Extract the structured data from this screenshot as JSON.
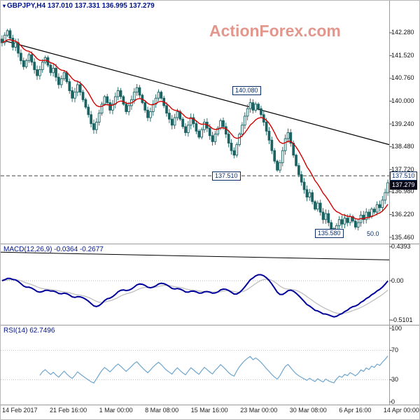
{
  "header": {
    "icon": "▾",
    "symbol_line": "GBPJPY,H4 137.010 137.331 136.995 137.279"
  },
  "watermark": {
    "text": "ActionForex.com",
    "color": "#dd867a"
  },
  "colors": {
    "candle": "#1a6363",
    "ma": "#d40000",
    "trendline": "#000000",
    "macd": "#00009b",
    "signal": "#bfbfbf",
    "rsi": "#6ea6cd",
    "panel_border": "#9a9a9a",
    "label_box": "#0b2e6b",
    "current_box_bg": "#07071a"
  },
  "time_axis": [
    "14 Feb 2017",
    "21 Feb 16:00",
    "1 Mar 00:00",
    "8 Mar 08:00",
    "15 Mar 16:00",
    "23 Mar 00:00",
    "30 Mar 08:00",
    "6 Apr 16:00",
    "14 Apr 00:00"
  ],
  "chart_data": [
    {
      "type": "candlestick",
      "title": "GBPJPY,H4",
      "ohlc_current": {
        "open": 137.01,
        "high": 137.331,
        "low": 136.995,
        "close": 137.279
      },
      "ylim": [
        135.25,
        143.35
      ],
      "y_ticks": [
        142.28,
        141.52,
        140.76,
        140.0,
        139.24,
        138.48,
        137.72,
        136.98,
        136.22,
        135.46
      ],
      "closes": [
        141.95,
        142.2,
        142.35,
        142.1,
        141.8,
        141.95,
        141.6,
        141.35,
        141.15,
        141.35,
        141.55,
        141.3,
        141.05,
        140.85,
        141.05,
        141.3,
        141.45,
        141.2,
        140.95,
        141.1,
        140.8,
        140.55,
        140.75,
        140.95,
        140.65,
        140.35,
        140.1,
        140.3,
        140.55,
        140.3,
        140.05,
        139.8,
        139.55,
        139.25,
        139.05,
        139.3,
        139.6,
        139.9,
        140.15,
        139.95,
        139.7,
        139.9,
        140.15,
        140.35,
        140.15,
        139.9,
        139.65,
        139.85,
        140.05,
        140.3,
        140.45,
        140.2,
        139.95,
        139.7,
        139.45,
        139.65,
        139.9,
        140.1,
        140.3,
        140.1,
        139.85,
        139.6,
        139.4,
        139.2,
        139.45,
        139.65,
        139.4,
        139.15,
        138.95,
        139.2,
        139.45,
        139.25,
        139.0,
        138.8,
        139.05,
        139.3,
        139.1,
        138.85,
        138.65,
        138.9,
        139.1,
        139.35,
        139.15,
        138.9,
        138.6,
        138.35,
        138.2,
        138.55,
        138.9,
        139.2,
        139.5,
        139.75,
        139.95,
        139.7,
        139.9,
        139.75,
        139.55,
        139.3,
        139.0,
        138.7,
        138.35,
        138.0,
        137.7,
        137.95,
        138.35,
        138.75,
        138.95,
        138.6,
        138.2,
        137.85,
        137.55,
        137.3,
        137.05,
        136.8,
        136.95,
        136.65,
        136.4,
        136.6,
        136.3,
        136.05,
        136.25,
        135.95,
        135.75,
        135.6,
        135.85,
        136.05,
        135.9,
        136.1,
        135.95,
        136.15,
        136.0,
        135.8,
        135.95,
        136.2,
        136.05,
        136.3,
        136.15,
        136.4,
        136.3,
        136.55,
        136.45,
        136.7,
        136.95,
        137.28
      ],
      "ma_period": 12,
      "trendline": {
        "from_price": 142.05,
        "to_price": 138.55
      },
      "dashed_level": 137.51,
      "level_label": "137.510",
      "current_price_label": "137.279",
      "annotations": [
        {
          "text": "140.080"
        },
        {
          "text": "137.510"
        },
        {
          "text": "135.580"
        },
        {
          "text": "50.0"
        }
      ]
    },
    {
      "type": "line",
      "name": "MACD",
      "label": "MACD(12,26,9) -0.0364 -0.2677",
      "params": [
        12,
        26,
        9
      ],
      "last_values": [
        -0.0364,
        -0.2677
      ],
      "y_ticks": [
        {
          "v": 0.4393,
          "label": "0.4393"
        },
        {
          "v": 0,
          "label": "0.00"
        },
        {
          "v": -0.5101,
          "label": "-0.5101"
        }
      ],
      "trendline": {
        "from_value": 0.37,
        "to_value": 0.27
      }
    },
    {
      "type": "line",
      "name": "RSI",
      "label": "RSI(14) 62.7496",
      "period": 14,
      "last_value": 62.7496,
      "y_ticks": [
        {
          "v": 100,
          "label": "100"
        },
        {
          "v": 70,
          "label": "70"
        },
        {
          "v": 30,
          "label": "30"
        },
        {
          "v": 0,
          "label": "0"
        }
      ]
    }
  ]
}
